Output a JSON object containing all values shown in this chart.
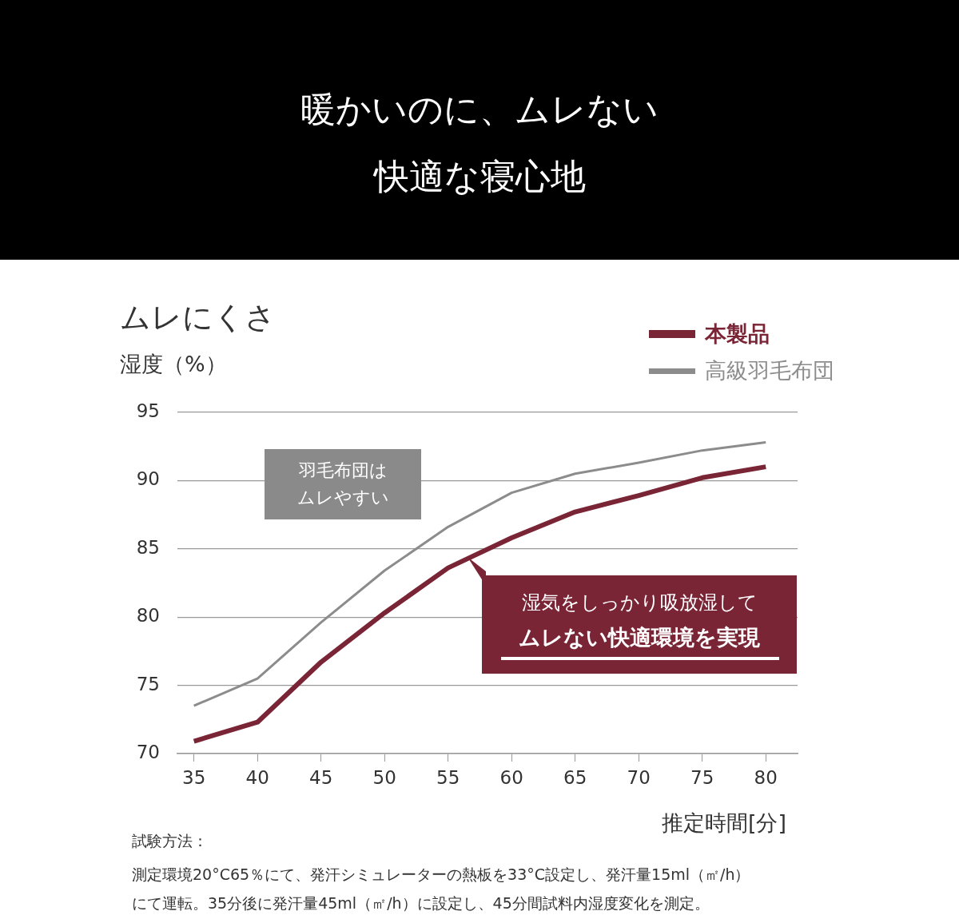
{
  "chart_data": {
    "type": "line",
    "title": "暖かいのに、ムレない快適な寝心地",
    "subtitle": "ムレにくさ",
    "ylabel": "湿度（%）",
    "xlabel": "推定時間[分]",
    "x": [
      35,
      40,
      45,
      50,
      55,
      60,
      65,
      70,
      75,
      80
    ],
    "series": [
      {
        "name": "本製品",
        "color": "#7a2536",
        "values": [
          70.9,
          72.3,
          76.7,
          80.3,
          83.6,
          85.8,
          87.7,
          88.9,
          90.2,
          91.0
        ]
      },
      {
        "name": "高級羽毛布団",
        "color": "#8c8c8c",
        "values": [
          73.5,
          75.5,
          79.6,
          83.4,
          86.6,
          89.1,
          90.5,
          91.3,
          92.2,
          92.8
        ]
      }
    ],
    "xlim": [
      33.7,
      82.5
    ],
    "xticks": [
      35,
      40,
      45,
      50,
      55,
      60,
      65,
      70,
      75,
      80
    ],
    "ylim": [
      70,
      95
    ],
    "yticks": [
      70,
      75,
      80,
      85,
      90,
      95
    ],
    "grid": "y",
    "legend": "top right",
    "marker": "none",
    "line_style": "solid",
    "annotations": [
      "羽毛布団はムレやすい",
      "湿気をしっかり吸放湿してムレない快適環境を実現",
      "試験方法：",
      "測定環境20°C65％にて、発汗シミュレーターの熱板を33°C設定し、発汗量15ml（㎡/h）にて運転。35分後に発汗量45ml（㎡/h）に設定し、45分間試料内湿度変化を測定。"
    ]
  }
}
